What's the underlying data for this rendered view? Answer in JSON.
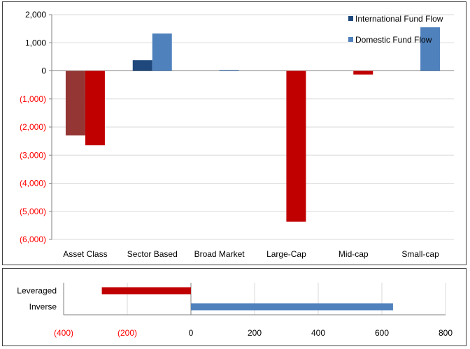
{
  "colors": {
    "international": "#1F497D",
    "domestic": "#4F81BD",
    "negative": "#C00000",
    "negative_dark": "#943634",
    "grid": "#D9D9D9",
    "negative_label": "#FF0000",
    "label": "#000000"
  },
  "chart_data": [
    {
      "type": "bar",
      "categories": [
        "Asset Class",
        "Sector Based",
        "Broad Market",
        "Large-Cap",
        "Mid-cap",
        "Small-cap"
      ],
      "series": [
        {
          "name": "International Fund Flow",
          "values": [
            -2300,
            380,
            0,
            0,
            0,
            0
          ]
        },
        {
          "name": "Domestic Fund Flow",
          "values": [
            -2650,
            1330,
            30,
            -5370,
            -130,
            1550
          ]
        }
      ],
      "y_ticks": [
        "2,000",
        "1,000",
        "0",
        "(1,000)",
        "(2,000)",
        "(3,000)",
        "(4,000)",
        "(5,000)",
        "(6,000)"
      ],
      "y_tick_values": [
        2000,
        1000,
        0,
        -1000,
        -2000,
        -3000,
        -4000,
        -5000,
        -6000
      ],
      "ylim": [
        -6000,
        2000
      ],
      "legend_position": "top-right",
      "grid": true
    },
    {
      "type": "bar",
      "orientation": "horizontal",
      "categories": [
        "Leveraged",
        "Inverse"
      ],
      "values": [
        -280,
        635
      ],
      "x_ticks": [
        "(400)",
        "(200)",
        "0",
        "200",
        "400",
        "600",
        "800"
      ],
      "x_tick_values": [
        -400,
        -200,
        0,
        200,
        400,
        600,
        800
      ],
      "xlim": [
        -400,
        800
      ],
      "grid": true
    }
  ]
}
